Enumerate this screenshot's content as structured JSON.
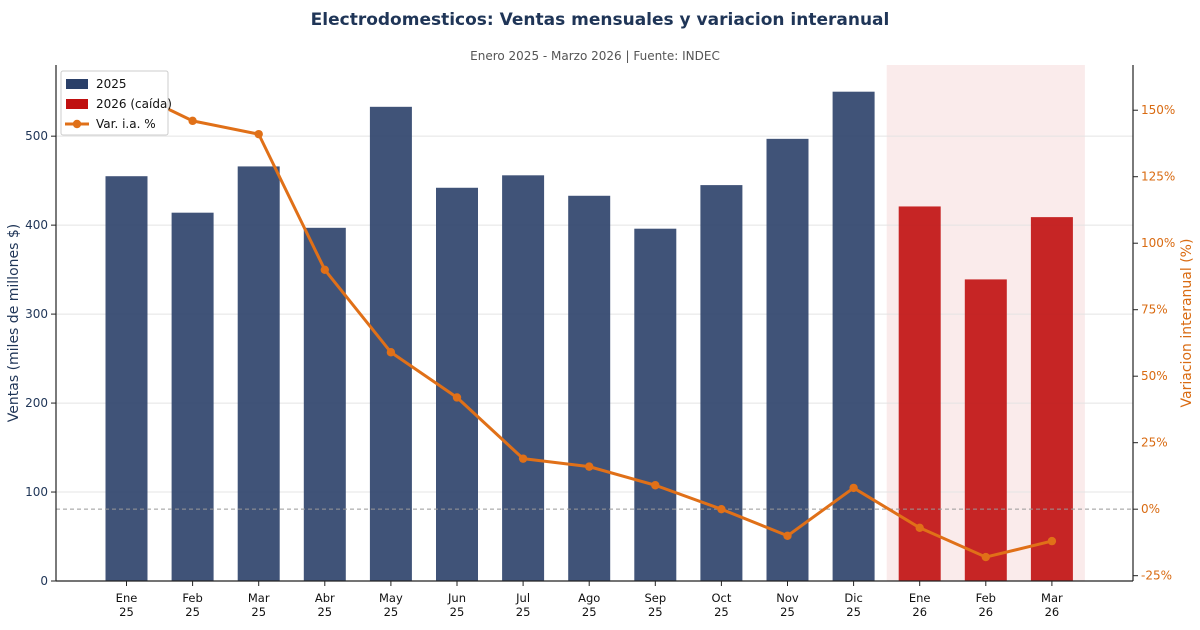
{
  "chart_data": {
    "type": "bar",
    "title": "Electrodomesticos: Ventas mensuales y variacion interanual",
    "subtitle": "Enero 2025 - Marzo 2026  |  Fuente: INDEC",
    "categories": [
      [
        "Ene",
        "25"
      ],
      [
        "Feb",
        "25"
      ],
      [
        "Mar",
        "25"
      ],
      [
        "Abr",
        "25"
      ],
      [
        "May",
        "25"
      ],
      [
        "Jun",
        "25"
      ],
      [
        "Jul",
        "25"
      ],
      [
        "Ago",
        "25"
      ],
      [
        "Sep",
        "25"
      ],
      [
        "Oct",
        "25"
      ],
      [
        "Nov",
        "25"
      ],
      [
        "Dic",
        "25"
      ],
      [
        "Ene",
        "26"
      ],
      [
        "Feb",
        "26"
      ],
      [
        "Mar",
        "26"
      ]
    ],
    "ylabel": "Ventas (miles de millones $)",
    "y2label": "Variacion interanual (%)",
    "ylim": [
      0,
      580
    ],
    "yticks": [
      0,
      100,
      200,
      300,
      400,
      500
    ],
    "y2lim": [
      -27,
      167
    ],
    "y2ticks": [
      -25,
      0,
      25,
      50,
      75,
      100,
      125,
      150
    ],
    "y2tick_suffix": "%",
    "series": [
      {
        "name": "2025",
        "kind": "bar",
        "color": "#2b4069",
        "values": [
          455,
          414,
          466,
          397,
          533,
          442,
          456,
          433,
          396,
          445,
          497,
          550,
          null,
          null,
          null
        ]
      },
      {
        "name": "2026 (caída)",
        "kind": "bar",
        "color": "#c01010",
        "values": [
          null,
          null,
          null,
          null,
          null,
          null,
          null,
          null,
          null,
          null,
          null,
          null,
          421,
          339,
          409
        ]
      },
      {
        "name": "Var. i.a. %",
        "kind": "line",
        "axis": "right",
        "color": "#e07018",
        "values": [
          158,
          146,
          141,
          90,
          59,
          42,
          19,
          16,
          9,
          0,
          -10,
          8,
          -7,
          -18,
          -12
        ]
      }
    ],
    "highlight_region": {
      "from_category": 12,
      "to_category": 14,
      "color": "#f7dede"
    },
    "reference_line": {
      "axis": "right",
      "value": 0,
      "style": "dashed"
    },
    "grid": true,
    "legend_position": "top-left",
    "colors": {
      "axis_left": "#1f3557",
      "axis_right": "#d96b12"
    }
  }
}
